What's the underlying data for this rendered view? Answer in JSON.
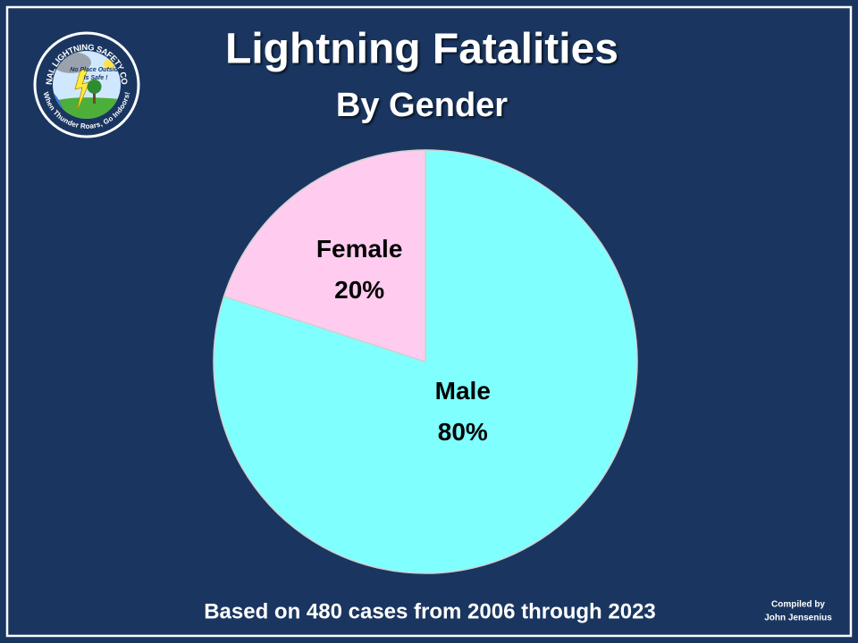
{
  "chart_data": {
    "type": "pie",
    "title": "Lightning Fatalities",
    "subtitle": "By Gender",
    "categories": [
      "Male",
      "Female"
    ],
    "values": [
      80,
      20
    ],
    "value_labels": [
      "80%",
      "20%"
    ],
    "colors": [
      "#80ffff",
      "#ffccf0"
    ],
    "footnote": "Based on 480 cases from 2006 through 2023",
    "credit": [
      "Compiled by",
      "John Jensenius"
    ]
  },
  "logo": {
    "ring_top": "NATIONAL LIGHTNING SAFETY COUNCIL",
    "ring_bottom": "When Thunder Roars, Go Indoors!",
    "motto": [
      "No Place Outside",
      "Is Safe !"
    ]
  }
}
